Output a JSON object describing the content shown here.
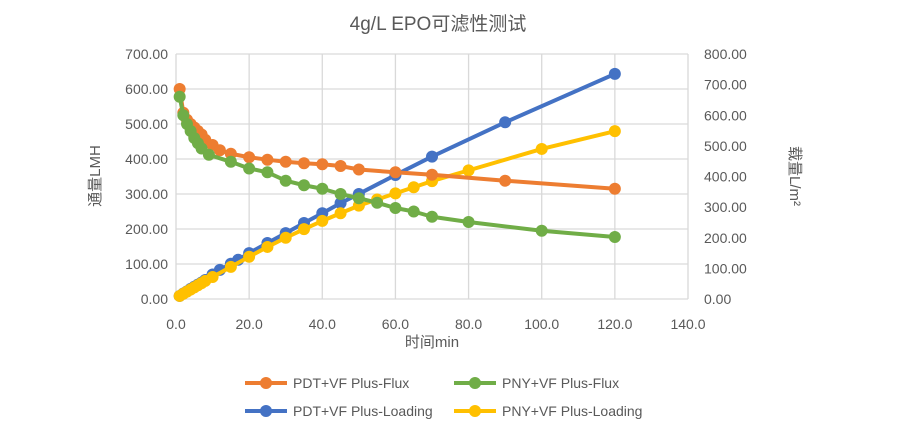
{
  "chart_data": {
    "type": "line",
    "title": "4g/L EPO可滤性测试",
    "xlabel": "时间min",
    "ylabel": "通量LMH",
    "y2label": "载量L/m²",
    "xlim": [
      0,
      140
    ],
    "ylim": [
      0,
      700
    ],
    "y2lim": [
      0,
      800
    ],
    "xticks": [
      "0.0",
      "20.0",
      "40.0",
      "60.0",
      "80.0",
      "100.0",
      "120.0",
      "140.0"
    ],
    "yticks": [
      "0.00",
      "100.00",
      "200.00",
      "300.00",
      "400.00",
      "500.00",
      "600.00",
      "700.00"
    ],
    "y2ticks": [
      "0.00",
      "100.00",
      "200.00",
      "300.00",
      "400.00",
      "500.00",
      "600.00",
      "700.00",
      "800.00"
    ],
    "grid": true,
    "legend": "bottom",
    "series": [
      {
        "name": "PDT+VF Plus-Flux",
        "axis": "left",
        "color": "#ED7D31",
        "x": [
          1,
          2,
          3,
          4,
          5,
          6,
          7,
          8,
          10,
          12,
          15,
          20,
          25,
          30,
          35,
          40,
          45,
          50,
          60,
          70,
          90,
          120
        ],
        "y": [
          600,
          532,
          512,
          500,
          490,
          480,
          470,
          455,
          440,
          425,
          415,
          405,
          398,
          392,
          388,
          385,
          380,
          370,
          362,
          355,
          338,
          315
        ]
      },
      {
        "name": "PNY+VF Plus-Flux",
        "axis": "left",
        "color": "#70AD47",
        "x": [
          1,
          2,
          3,
          4,
          5,
          6,
          7,
          9,
          15,
          20,
          25,
          30,
          35,
          40,
          45,
          50,
          55,
          60,
          65,
          70,
          80,
          100,
          120
        ],
        "y": [
          578,
          525,
          500,
          480,
          460,
          445,
          430,
          412,
          392,
          373,
          362,
          338,
          325,
          315,
          300,
          288,
          275,
          260,
          250,
          235,
          220,
          195,
          177
        ]
      },
      {
        "name": "PDT+VF Plus-Loading",
        "axis": "right",
        "color": "#4472C4",
        "x": [
          1,
          2,
          3,
          4,
          5,
          6,
          7,
          8,
          10,
          12,
          15,
          17,
          20,
          25,
          30,
          35,
          40,
          45,
          50,
          60,
          70,
          90,
          120
        ],
        "y": [
          10,
          18,
          25,
          33,
          40,
          47,
          54,
          62,
          80,
          95,
          115,
          128,
          150,
          183,
          215,
          248,
          280,
          313,
          343,
          405,
          465,
          577,
          735
        ]
      },
      {
        "name": "PNY+VF Plus-Loading",
        "axis": "right",
        "color": "#FFC000",
        "x": [
          1,
          2,
          3,
          4,
          5,
          6,
          7,
          8,
          10,
          15,
          20,
          25,
          30,
          35,
          40,
          45,
          50,
          55,
          60,
          65,
          70,
          80,
          100,
          120
        ],
        "y": [
          10,
          17,
          24,
          31,
          38,
          45,
          52,
          59,
          72,
          105,
          138,
          170,
          200,
          228,
          255,
          280,
          305,
          325,
          345,
          365,
          385,
          420,
          490,
          548
        ]
      }
    ]
  }
}
